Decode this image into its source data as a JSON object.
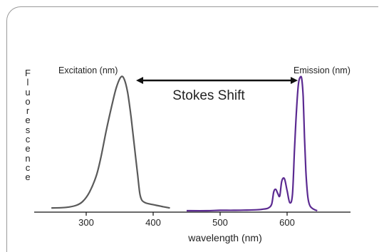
{
  "chart_data": {
    "type": "line",
    "xlabel": "wavelength (nm)",
    "ylabel": "Fluorescence",
    "xlim": [
      200,
      650
    ],
    "ylim": [
      0,
      1
    ],
    "xticks": [
      300,
      400,
      500,
      600
    ],
    "grid": false,
    "series": [
      {
        "name": "Excitation (nm)",
        "color": "#5a5a5a",
        "x": [
          248,
          270,
          285,
          295,
          305,
          315,
          322,
          330,
          338,
          345,
          352,
          357,
          362,
          367,
          372,
          377,
          380,
          383,
          388,
          395,
          405,
          415,
          425
        ],
        "y": [
          0.02,
          0.025,
          0.04,
          0.07,
          0.14,
          0.26,
          0.4,
          0.6,
          0.78,
          0.92,
          1.0,
          0.98,
          0.88,
          0.7,
          0.48,
          0.26,
          0.13,
          0.08,
          0.06,
          0.05,
          0.04,
          0.03,
          0.02
        ]
      },
      {
        "name": "Emission (nm)",
        "color": "#5b2a91",
        "x": [
          450,
          480,
          500,
          520,
          540,
          555,
          565,
          572,
          577,
          580,
          583,
          586,
          589,
          592,
          596,
          600,
          604,
          608,
          611,
          614,
          617,
          620,
          622,
          624,
          626,
          628,
          630,
          632,
          635,
          640,
          645
        ],
        "y": [
          0.0,
          0.0,
          0.003,
          0.003,
          0.005,
          0.007,
          0.012,
          0.02,
          0.05,
          0.14,
          0.16,
          0.13,
          0.11,
          0.22,
          0.24,
          0.15,
          0.06,
          0.12,
          0.45,
          0.75,
          0.95,
          1.0,
          0.98,
          0.85,
          0.55,
          0.3,
          0.15,
          0.07,
          0.03,
          0.01,
          0.0
        ]
      }
    ],
    "annotations": {
      "stokes_shift": "Stokes Shift"
    }
  }
}
